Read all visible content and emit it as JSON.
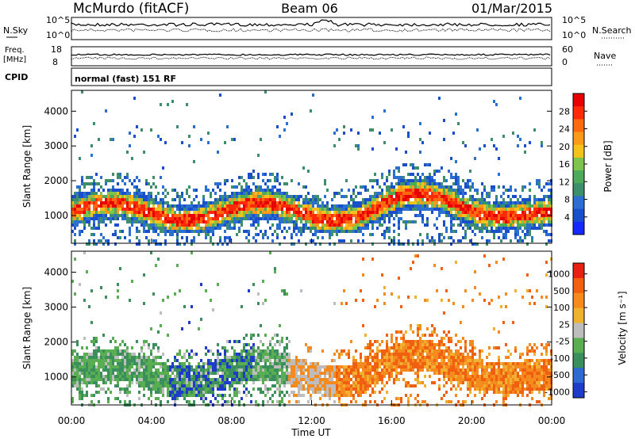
{
  "header": {
    "station": "McMurdo (fitACF)",
    "beam": "Beam 06",
    "date": "01/Mar/2015",
    "mode": "normal (fast) 151 RF"
  },
  "status_panels": {
    "nsky_label": "N.Sky",
    "nsearch_label": "N.Search",
    "freq_label_top": "Freq.",
    "freq_label_unit": "[MHz]",
    "nave_label": "Nave",
    "cpid_label": "CPID",
    "noise_ticks_left": [
      "10^5",
      "10^0"
    ],
    "noise_ticks_right": [
      "10^5",
      "10^0"
    ],
    "freq_ticks": [
      "18",
      "8"
    ],
    "nave_ticks": [
      "60",
      "0"
    ]
  },
  "chart_data": [
    {
      "type": "heatmap",
      "name": "power",
      "ylabel": "Slant Range [km]",
      "yticks": [
        "1000",
        "2000",
        "3000",
        "4000"
      ],
      "ylim": [
        200,
        4600
      ],
      "xlim": [
        0,
        24
      ],
      "xticks": [
        "00:00",
        "04:00",
        "08:00",
        "12:00",
        "16:00",
        "20:00",
        "00:00"
      ],
      "colorbar": {
        "label": "Power [dB]",
        "ticks": [
          "4",
          "8",
          "12",
          "16",
          "20",
          "24",
          "28"
        ],
        "range": [
          0,
          32
        ],
        "colors": [
          "#1428ff",
          "#1a4fcc",
          "#2b6fd0",
          "#3c8f6a",
          "#4caa5a",
          "#7dc34c",
          "#f4c21c",
          "#f89a1a",
          "#ff6a10",
          "#ff2a0a",
          "#e60000"
        ]
      }
    },
    {
      "type": "heatmap",
      "name": "velocity",
      "ylabel": "Slant Range [km]",
      "yticks": [
        "1000",
        "2000",
        "3000",
        "4000"
      ],
      "ylim": [
        200,
        4600
      ],
      "xlim": [
        0,
        24
      ],
      "xticks": [
        "00:00",
        "04:00",
        "08:00",
        "12:00",
        "16:00",
        "20:00",
        "00:00"
      ],
      "xlabel": "Time UT",
      "colorbar": {
        "label": "Velocity [m s⁻¹]",
        "ticks": [
          "1000",
          "500",
          "100",
          "25",
          "-25",
          "-100",
          "-500",
          "-1000"
        ],
        "colors": [
          "#1e3cc8",
          "#2f6ad0",
          "#3a8f5c",
          "#5aae52",
          "#bdbdbd",
          "#f0b030",
          "#f58a1e",
          "#f06010",
          "#e82010"
        ]
      }
    }
  ]
}
